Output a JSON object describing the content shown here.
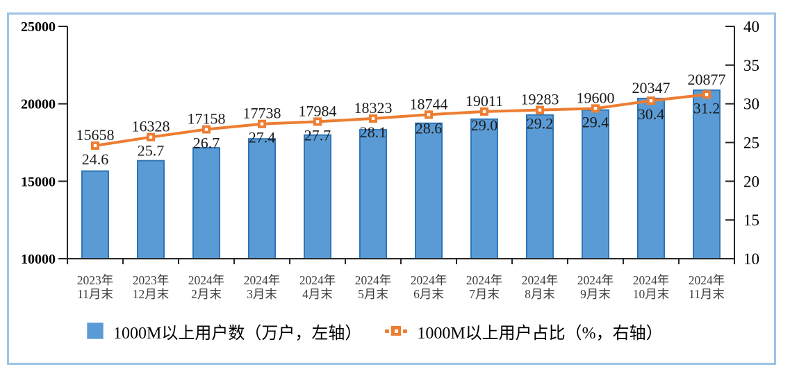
{
  "chart_data": {
    "type": "bar",
    "subtype": "bar-line-combo",
    "title": "",
    "categories": [
      [
        "2023年",
        "11月末"
      ],
      [
        "2023年",
        "12月末"
      ],
      [
        "2024年",
        "2月末"
      ],
      [
        "2024年",
        "3月末"
      ],
      [
        "2024年",
        "4月末"
      ],
      [
        "2024年",
        "5月末"
      ],
      [
        "2024年",
        "6月末"
      ],
      [
        "2024年",
        "7月末"
      ],
      [
        "2024年",
        "8月末"
      ],
      [
        "2024年",
        "9月末"
      ],
      [
        "2024年",
        "10月末"
      ],
      [
        "2024年",
        "11月末"
      ]
    ],
    "series": [
      {
        "name": "1000M以上用户数（万户，左轴）",
        "type": "bar",
        "axis": "left",
        "values": [
          15658,
          16328,
          17158,
          17738,
          17984,
          18323,
          18744,
          19011,
          19283,
          19600,
          20347,
          20877
        ],
        "fill": "#5B9BD5",
        "stroke": "#2E75B6"
      },
      {
        "name": "1000M以上用户占比（%，右轴）",
        "type": "line",
        "axis": "right",
        "values": [
          24.6,
          25.7,
          26.7,
          27.4,
          27.7,
          28.1,
          28.6,
          29.0,
          29.2,
          29.4,
          30.4,
          31.2
        ],
        "color": "#ED7D31",
        "marker": "square"
      }
    ],
    "left_axis": {
      "min": 10000,
      "max": 25000,
      "tick_step": 5000,
      "ticks": [
        25000,
        20000,
        15000,
        10000
      ]
    },
    "right_axis": {
      "min": 10,
      "max": 40,
      "tick_step": 5,
      "ticks": [
        40,
        35,
        30,
        25,
        20,
        15,
        10
      ]
    },
    "grid": false,
    "legend_position": "bottom",
    "value_label_decimals": {
      "bar": 0,
      "line": 1
    }
  },
  "colors": {
    "frame_border": "#9DC3E6",
    "axis_line": "#262626",
    "axis_label": "#000000",
    "category_label": "#3D3D3D",
    "data_label": "#1A1A1A",
    "background": "#FFFFFF"
  }
}
